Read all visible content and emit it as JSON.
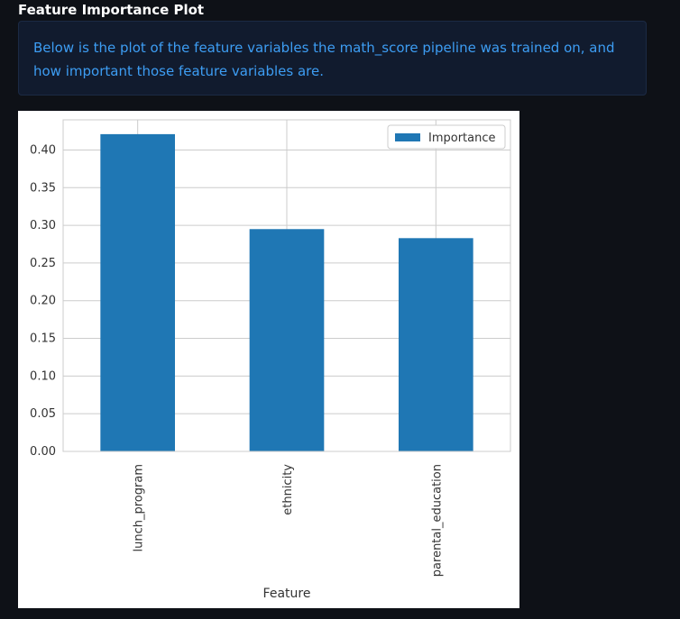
{
  "page": {
    "title": "Feature Importance Plot",
    "description": "Below is the plot of the feature variables the math_score pipeline was trained on, and how important those feature variables are."
  },
  "colors": {
    "background": "#0e1117",
    "info_bg": "#111b2e",
    "info_text": "#3d9df3",
    "bar": "#1f77b4",
    "grid": "#cccccc"
  },
  "chart_data": {
    "type": "bar",
    "categories": [
      "lunch_program",
      "ethnicity",
      "parental_education"
    ],
    "series": [
      {
        "name": "Importance",
        "values": [
          0.421,
          0.295,
          0.283
        ]
      }
    ],
    "xlabel": "Feature",
    "ylabel": "",
    "ylim": [
      0,
      0.44
    ],
    "yticks": [
      0.0,
      0.05,
      0.1,
      0.15,
      0.2,
      0.25,
      0.3,
      0.35,
      0.4
    ],
    "grid": true,
    "legend": "top-right"
  }
}
